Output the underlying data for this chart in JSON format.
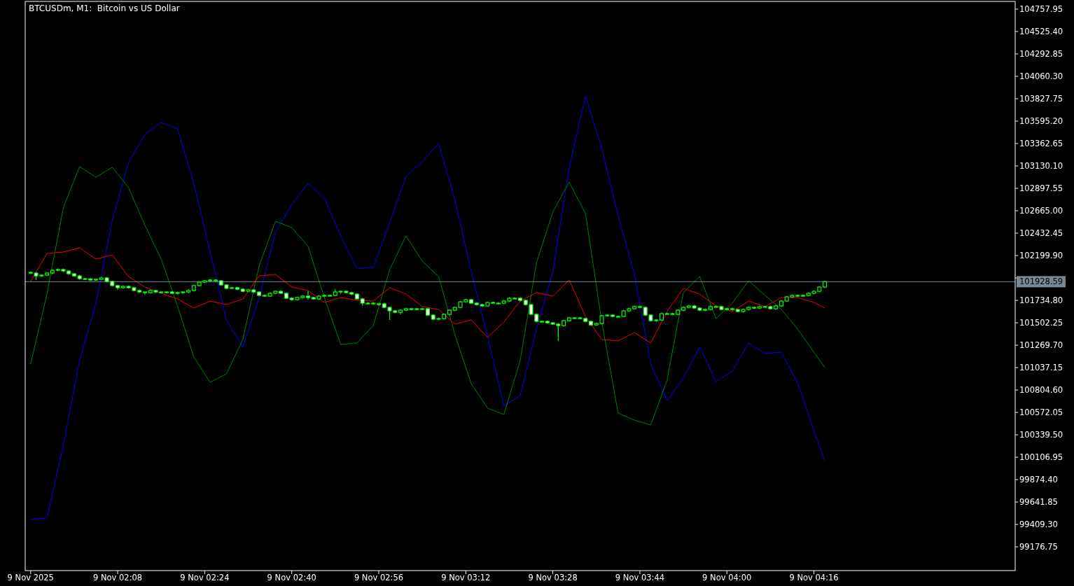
{
  "chart_data": {
    "type": "candlestick",
    "title": "BTCUSDm, M1:  Bitcoin vs US Dollar",
    "color": "#00ff00",
    "x": [
      "2025-11-09T01:52",
      "2025-11-09T01:53",
      "2025-11-09T01:54",
      "2025-11-09T01:55",
      "2025-11-09T01:56",
      "2025-11-09T01:57",
      "2025-11-09T01:58",
      "2025-11-09T01:59",
      "2025-11-09T02:00",
      "2025-11-09T02:01",
      "2025-11-09T02:02",
      "2025-11-09T02:03",
      "2025-11-09T02:04",
      "2025-11-09T02:05",
      "2025-11-09T02:06",
      "2025-11-09T02:07",
      "2025-11-09T02:08",
      "2025-11-09T02:09",
      "2025-11-09T02:10",
      "2025-11-09T02:11",
      "2025-11-09T02:12",
      "2025-11-09T02:13",
      "2025-11-09T02:14",
      "2025-11-09T02:15",
      "2025-11-09T02:16",
      "2025-11-09T02:17",
      "2025-11-09T02:18",
      "2025-11-09T02:19",
      "2025-11-09T02:20",
      "2025-11-09T02:21",
      "2025-11-09T02:22",
      "2025-11-09T02:23",
      "2025-11-09T02:24",
      "2025-11-09T02:25",
      "2025-11-09T02:26",
      "2025-11-09T02:27",
      "2025-11-09T02:28",
      "2025-11-09T02:29",
      "2025-11-09T02:30",
      "2025-11-09T02:31",
      "2025-11-09T02:32",
      "2025-11-09T02:33",
      "2025-11-09T02:34",
      "2025-11-09T02:35",
      "2025-11-09T02:36",
      "2025-11-09T02:37",
      "2025-11-09T02:38",
      "2025-11-09T02:39",
      "2025-11-09T02:40",
      "2025-11-09T02:41",
      "2025-11-09T02:42",
      "2025-11-09T02:43",
      "2025-11-09T02:44",
      "2025-11-09T02:45",
      "2025-11-09T02:46",
      "2025-11-09T02:47",
      "2025-11-09T02:48",
      "2025-11-09T02:49",
      "2025-11-09T02:50",
      "2025-11-09T02:51",
      "2025-11-09T02:52",
      "2025-11-09T02:53",
      "2025-11-09T02:54",
      "2025-11-09T02:55",
      "2025-11-09T02:56",
      "2025-11-09T02:57",
      "2025-11-09T02:58",
      "2025-11-09T02:59",
      "2025-11-09T03:00",
      "2025-11-09T03:01",
      "2025-11-09T03:02",
      "2025-11-09T03:03",
      "2025-11-09T03:04",
      "2025-11-09T03:05",
      "2025-11-09T03:06",
      "2025-11-09T03:07",
      "2025-11-09T03:08",
      "2025-11-09T03:09",
      "2025-11-09T03:10",
      "2025-11-09T03:11",
      "2025-11-09T03:12",
      "2025-11-09T03:13",
      "2025-11-09T03:14",
      "2025-11-09T03:15",
      "2025-11-09T03:16",
      "2025-11-09T03:17",
      "2025-11-09T03:18",
      "2025-11-09T03:19",
      "2025-11-09T03:20",
      "2025-11-09T03:21",
      "2025-11-09T03:22",
      "2025-11-09T03:23",
      "2025-11-09T03:24",
      "2025-11-09T03:25",
      "2025-11-09T03:26",
      "2025-11-09T03:27",
      "2025-11-09T03:28",
      "2025-11-09T03:29",
      "2025-11-09T03:30",
      "2025-11-09T03:31",
      "2025-11-09T03:32",
      "2025-11-09T03:33",
      "2025-11-09T03:34",
      "2025-11-09T03:35",
      "2025-11-09T03:36",
      "2025-11-09T03:37",
      "2025-11-09T03:38",
      "2025-11-09T03:39",
      "2025-11-09T03:40",
      "2025-11-09T03:41",
      "2025-11-09T03:42",
      "2025-11-09T03:43",
      "2025-11-09T03:44",
      "2025-11-09T03:45",
      "2025-11-09T03:46",
      "2025-11-09T03:47",
      "2025-11-09T03:48",
      "2025-11-09T03:49",
      "2025-11-09T03:50",
      "2025-11-09T03:51",
      "2025-11-09T03:52",
      "2025-11-09T03:53",
      "2025-11-09T03:54",
      "2025-11-09T03:55",
      "2025-11-09T03:56",
      "2025-11-09T03:57",
      "2025-11-09T03:58",
      "2025-11-09T03:59",
      "2025-11-09T04:00",
      "2025-11-09T04:01",
      "2025-11-09T04:02",
      "2025-11-09T04:03",
      "2025-11-09T04:04",
      "2025-11-09T04:05",
      "2025-11-09T04:06",
      "2025-11-09T04:07",
      "2025-11-09T04:08",
      "2025-11-09T04:09",
      "2025-11-09T04:10",
      "2025-11-09T04:11",
      "2025-11-09T04:12",
      "2025-11-09T04:13",
      "2025-11-09T04:14",
      "2025-11-09T04:15",
      "2025-11-09T04:16",
      "2025-11-09T04:17",
      "2025-11-09T04:18"
    ],
    "ohlc": [
      [
        102025,
        102035,
        102008,
        102018
      ],
      [
        102018,
        102028,
        101946,
        101989
      ],
      [
        101989,
        102007,
        101979,
        101997
      ],
      [
        101997,
        102028,
        101987,
        102018
      ],
      [
        102018,
        102057,
        102008,
        102047
      ],
      [
        102047,
        102065,
        102037,
        102055
      ],
      [
        102055,
        102065,
        102030,
        102040
      ],
      [
        102040,
        102050,
        102001,
        102011
      ],
      [
        102011,
        102021,
        101979,
        101989
      ],
      [
        101989,
        101999,
        101950,
        101960
      ],
      [
        101960,
        101970,
        101948,
        101958
      ],
      [
        101958,
        101968,
        101936,
        101946
      ],
      [
        101946,
        101963,
        101936,
        101953
      ],
      [
        101953,
        101978,
        101943,
        101968
      ],
      [
        101968,
        101978,
        101921,
        101931
      ],
      [
        101931,
        101941,
        101878,
        101888
      ],
      [
        101888,
        101898,
        101846,
        101866
      ],
      [
        101866,
        101890,
        101856,
        101880
      ],
      [
        101880,
        101890,
        101856,
        101866
      ],
      [
        101866,
        101876,
        101827,
        101837
      ],
      [
        101837,
        101847,
        101812,
        101822
      ],
      [
        101822,
        101832,
        101795,
        101815
      ],
      [
        101815,
        101847,
        101805,
        101837
      ],
      [
        101837,
        101847,
        101812,
        101822
      ],
      [
        101822,
        101832,
        101805,
        101815
      ],
      [
        101815,
        101832,
        101805,
        101822
      ],
      [
        101822,
        101832,
        101798,
        101808
      ],
      [
        101808,
        101825,
        101798,
        101815
      ],
      [
        101815,
        101832,
        101805,
        101822
      ],
      [
        101822,
        101847,
        101812,
        101837
      ],
      [
        101837,
        101898,
        101827,
        101888
      ],
      [
        101888,
        101934,
        101878,
        101924
      ],
      [
        101924,
        101948,
        101914,
        101938
      ],
      [
        101938,
        101956,
        101928,
        101946
      ],
      [
        101946,
        101956,
        101928,
        101938
      ],
      [
        101938,
        101948,
        101885,
        101895
      ],
      [
        101895,
        101905,
        101849,
        101859
      ],
      [
        101859,
        101876,
        101849,
        101866
      ],
      [
        101866,
        101876,
        101841,
        101851
      ],
      [
        101851,
        101861,
        101819,
        101829
      ],
      [
        101829,
        101854,
        101819,
        101844
      ],
      [
        101844,
        101854,
        101812,
        101822
      ],
      [
        101822,
        101832,
        101776,
        101786
      ],
      [
        101786,
        101796,
        101769,
        101779
      ],
      [
        101779,
        101818,
        101769,
        101808
      ],
      [
        101808,
        101839,
        101798,
        101829
      ],
      [
        101829,
        101839,
        101798,
        101808
      ],
      [
        101808,
        101818,
        101747,
        101757
      ],
      [
        101757,
        101767,
        101732,
        101742
      ],
      [
        101742,
        101774,
        101732,
        101764
      ],
      [
        101764,
        101789,
        101754,
        101779
      ],
      [
        101779,
        101830,
        101740,
        101764
      ],
      [
        101764,
        101774,
        101740,
        101750
      ],
      [
        101750,
        101789,
        101740,
        101779
      ],
      [
        101779,
        101796,
        101769,
        101786
      ],
      [
        101786,
        101796,
        101776,
        101786
      ],
      [
        101786,
        101850,
        101776,
        101822
      ],
      [
        101822,
        101839,
        101805,
        101829
      ],
      [
        101829,
        101839,
        101805,
        101815
      ],
      [
        101815,
        101825,
        101790,
        101800
      ],
      [
        101800,
        101810,
        101740,
        101750
      ],
      [
        101750,
        101760,
        101680,
        101706
      ],
      [
        101706,
        101716,
        101696,
        101706
      ],
      [
        101706,
        101716,
        101689,
        101699
      ],
      [
        101699,
        101709,
        101680,
        101699
      ],
      [
        101699,
        101709,
        101652,
        101662
      ],
      [
        101662,
        101672,
        101531,
        101626
      ],
      [
        101626,
        101636,
        101601,
        101611
      ],
      [
        101611,
        101643,
        101590,
        101633
      ],
      [
        101633,
        101658,
        101623,
        101648
      ],
      [
        101648,
        101658,
        101630,
        101640
      ],
      [
        101640,
        101658,
        101630,
        101648
      ],
      [
        101648,
        101658,
        101638,
        101648
      ],
      [
        101648,
        101658,
        101572,
        101582
      ],
      [
        101582,
        101592,
        101529,
        101539
      ],
      [
        101539,
        101556,
        101529,
        101546
      ],
      [
        101546,
        101600,
        101536,
        101590
      ],
      [
        101590,
        101643,
        101580,
        101633
      ],
      [
        101633,
        101672,
        101623,
        101662
      ],
      [
        101662,
        101730,
        101652,
        101720
      ],
      [
        101720,
        101752,
        101710,
        101742
      ],
      [
        101742,
        101752,
        101696,
        101706
      ],
      [
        101706,
        101716,
        101681,
        101691
      ],
      [
        101691,
        101701,
        101667,
        101677
      ],
      [
        101677,
        101723,
        101667,
        101713
      ],
      [
        101713,
        101723,
        101696,
        101706
      ],
      [
        101706,
        101716,
        101696,
        101706
      ],
      [
        101706,
        101738,
        101696,
        101728
      ],
      [
        101728,
        101767,
        101718,
        101757
      ],
      [
        101757,
        101767,
        101747,
        101757
      ],
      [
        101757,
        101767,
        101725,
        101735
      ],
      [
        101735,
        101745,
        101681,
        101691
      ],
      [
        101691,
        101701,
        101580,
        101590
      ],
      [
        101590,
        101600,
        101507,
        101517
      ],
      [
        101517,
        101527,
        101507,
        101517
      ],
      [
        101517,
        101527,
        101492,
        101502
      ],
      [
        101502,
        101512,
        101478,
        101488
      ],
      [
        101488,
        101498,
        101313,
        101473
      ],
      [
        101473,
        101534,
        101463,
        101524
      ],
      [
        101524,
        101563,
        101514,
        101553
      ],
      [
        101553,
        101563,
        101543,
        101553
      ],
      [
        101553,
        101563,
        101536,
        101546
      ],
      [
        101546,
        101556,
        101507,
        101517
      ],
      [
        101517,
        101527,
        101470,
        101480
      ],
      [
        101480,
        101505,
        101470,
        101495
      ],
      [
        101495,
        101585,
        101485,
        101575
      ],
      [
        101575,
        101592,
        101565,
        101582
      ],
      [
        101582,
        101592,
        101558,
        101568
      ],
      [
        101568,
        101578,
        101558,
        101568
      ],
      [
        101568,
        101636,
        101558,
        101626
      ],
      [
        101626,
        101658,
        101616,
        101648
      ],
      [
        101648,
        101680,
        101638,
        101670
      ],
      [
        101670,
        101680,
        101652,
        101662
      ],
      [
        101662,
        101672,
        101572,
        101582
      ],
      [
        101582,
        101592,
        101514,
        101524
      ],
      [
        101524,
        101541,
        101514,
        101531
      ],
      [
        101531,
        101607,
        101521,
        101597
      ],
      [
        101597,
        101607,
        101587,
        101597
      ],
      [
        101597,
        101607,
        101580,
        101590
      ],
      [
        101590,
        101643,
        101580,
        101633
      ],
      [
        101633,
        101672,
        101623,
        101662
      ],
      [
        101662,
        101687,
        101652,
        101677
      ],
      [
        101677,
        101687,
        101645,
        101655
      ],
      [
        101655,
        101665,
        101623,
        101633
      ],
      [
        101633,
        101650,
        101623,
        101640
      ],
      [
        101640,
        101680,
        101630,
        101670
      ],
      [
        101670,
        101680,
        101660,
        101670
      ],
      [
        101670,
        101680,
        101630,
        101640
      ],
      [
        101640,
        101658,
        101630,
        101648
      ],
      [
        101648,
        101658,
        101630,
        101640
      ],
      [
        101640,
        101650,
        101609,
        101619
      ],
      [
        101619,
        101650,
        101609,
        101640
      ],
      [
        101640,
        101672,
        101630,
        101662
      ],
      [
        101662,
        101672,
        101645,
        101655
      ],
      [
        101655,
        101680,
        101645,
        101670
      ],
      [
        101670,
        101680,
        101660,
        101670
      ],
      [
        101670,
        101680,
        101638,
        101648
      ],
      [
        101648,
        101687,
        101638,
        101677
      ],
      [
        101677,
        101738,
        101667,
        101728
      ],
      [
        101728,
        101781,
        101718,
        101771
      ],
      [
        101771,
        101796,
        101761,
        101786
      ],
      [
        101786,
        101796,
        101769,
        101779
      ],
      [
        101779,
        101796,
        101769,
        101786
      ],
      [
        101786,
        101818,
        101776,
        101808
      ],
      [
        101808,
        101839,
        101798,
        101829
      ],
      [
        101829,
        101883,
        101819,
        101873
      ],
      [
        101873,
        101939,
        101863,
        101929
      ]
    ],
    "series": [
      {
        "type": "line",
        "color": "#0000ff",
        "x": [
          "2025-11-09T01:52",
          "2025-11-09T01:55",
          "2025-11-09T01:58",
          "2025-11-09T02:01",
          "2025-11-09T02:04",
          "2025-11-09T02:07",
          "2025-11-09T02:10",
          "2025-11-09T02:13",
          "2025-11-09T02:16",
          "2025-11-09T02:19",
          "2025-11-09T02:22",
          "2025-11-09T02:25",
          "2025-11-09T02:28",
          "2025-11-09T02:31",
          "2025-11-09T02:34",
          "2025-11-09T02:37",
          "2025-11-09T02:40",
          "2025-11-09T02:43",
          "2025-11-09T02:46",
          "2025-11-09T02:49",
          "2025-11-09T02:52",
          "2025-11-09T02:55",
          "2025-11-09T02:58",
          "2025-11-09T03:01",
          "2025-11-09T03:04",
          "2025-11-09T03:07",
          "2025-11-09T03:10",
          "2025-11-09T03:13",
          "2025-11-09T03:16",
          "2025-11-09T03:19",
          "2025-11-09T03:22",
          "2025-11-09T03:25",
          "2025-11-09T03:28",
          "2025-11-09T03:31",
          "2025-11-09T03:34",
          "2025-11-09T03:37",
          "2025-11-09T03:40",
          "2025-11-09T03:43",
          "2025-11-09T03:46",
          "2025-11-09T03:49",
          "2025-11-09T03:52",
          "2025-11-09T03:55",
          "2025-11-09T03:58",
          "2025-11-09T04:01",
          "2025-11-09T04:04",
          "2025-11-09T04:07",
          "2025-11-09T04:10",
          "2025-11-09T04:13",
          "2025-11-09T04:16",
          "2025-11-09T04:18"
        ],
        "values": [
          99460,
          99475,
          100231,
          101110,
          101706,
          102563,
          103167,
          103457,
          103581,
          103515,
          102949,
          102236,
          101532,
          101248,
          101764,
          102440,
          102731,
          102949,
          102796,
          102404,
          102062,
          102077,
          102542,
          103021,
          103174,
          103363,
          102781,
          102033,
          101364,
          100638,
          100747,
          101437,
          102033,
          103108,
          103857,
          103312,
          102614,
          102004,
          101074,
          100696,
          100928,
          101255,
          100892,
          101001,
          101292,
          101183,
          101197,
          100878,
          100383,
          100071
        ]
      },
      {
        "type": "line",
        "color": "#008000",
        "x": [
          "2025-11-09T01:52",
          "2025-11-09T01:55",
          "2025-11-09T01:58",
          "2025-11-09T02:01",
          "2025-11-09T02:04",
          "2025-11-09T02:07",
          "2025-11-09T02:10",
          "2025-11-09T02:13",
          "2025-11-09T02:16",
          "2025-11-09T02:19",
          "2025-11-09T02:22",
          "2025-11-09T02:25",
          "2025-11-09T02:28",
          "2025-11-09T02:31",
          "2025-11-09T02:34",
          "2025-11-09T02:37",
          "2025-11-09T02:40",
          "2025-11-09T02:43",
          "2025-11-09T02:46",
          "2025-11-09T02:49",
          "2025-11-09T02:52",
          "2025-11-09T02:55",
          "2025-11-09T02:58",
          "2025-11-09T03:01",
          "2025-11-09T03:04",
          "2025-11-09T03:07",
          "2025-11-09T03:10",
          "2025-11-09T03:13",
          "2025-11-09T03:16",
          "2025-11-09T03:19",
          "2025-11-09T03:22",
          "2025-11-09T03:25",
          "2025-11-09T03:28",
          "2025-11-09T03:31",
          "2025-11-09T03:34",
          "2025-11-09T03:37",
          "2025-11-09T03:40",
          "2025-11-09T03:43",
          "2025-11-09T03:46",
          "2025-11-09T03:49",
          "2025-11-09T03:52",
          "2025-11-09T03:55",
          "2025-11-09T03:58",
          "2025-11-09T04:01",
          "2025-11-09T04:04",
          "2025-11-09T04:07",
          "2025-11-09T04:10",
          "2025-11-09T04:13",
          "2025-11-09T04:16",
          "2025-11-09T04:18"
        ],
        "values": [
          101074,
          101800,
          102694,
          103123,
          103014,
          103116,
          102905,
          102514,
          102164,
          101677,
          101146,
          100885,
          100972,
          101328,
          102091,
          102556,
          102491,
          102295,
          101764,
          101277,
          101292,
          101473,
          102055,
          102404,
          102142,
          101982,
          101379,
          100870,
          100616,
          100550,
          101110,
          102127,
          102651,
          102963,
          102636,
          101510,
          100565,
          100492,
          100441,
          100907,
          101815,
          101982,
          101546,
          101706,
          101938,
          101786,
          101641,
          101437,
          101197,
          101037
        ]
      },
      {
        "type": "line",
        "color": "#ff0000",
        "x": [
          "2025-11-09T01:52",
          "2025-11-09T01:55",
          "2025-11-09T01:58",
          "2025-11-09T02:01",
          "2025-11-09T02:04",
          "2025-11-09T02:07",
          "2025-11-09T02:10",
          "2025-11-09T02:13",
          "2025-11-09T02:16",
          "2025-11-09T02:19",
          "2025-11-09T02:22",
          "2025-11-09T02:25",
          "2025-11-09T02:28",
          "2025-11-09T02:31",
          "2025-11-09T02:34",
          "2025-11-09T02:37",
          "2025-11-09T02:40",
          "2025-11-09T02:43",
          "2025-11-09T02:46",
          "2025-11-09T02:49",
          "2025-11-09T02:52",
          "2025-11-09T02:55",
          "2025-11-09T02:58",
          "2025-11-09T03:01",
          "2025-11-09T03:04",
          "2025-11-09T03:07",
          "2025-11-09T03:10",
          "2025-11-09T03:13",
          "2025-11-09T03:16",
          "2025-11-09T03:19",
          "2025-11-09T03:22",
          "2025-11-09T03:25",
          "2025-11-09T03:28",
          "2025-11-09T03:31",
          "2025-11-09T03:34",
          "2025-11-09T03:37",
          "2025-11-09T03:40",
          "2025-11-09T03:43",
          "2025-11-09T03:46",
          "2025-11-09T03:49",
          "2025-11-09T03:52",
          "2025-11-09T03:55",
          "2025-11-09T03:58",
          "2025-11-09T04:01",
          "2025-11-09T04:04",
          "2025-11-09T04:07",
          "2025-11-09T04:10",
          "2025-11-09T04:13",
          "2025-11-09T04:16",
          "2025-11-09T04:18"
        ],
        "values": [
          101931,
          102222,
          102236,
          102280,
          102164,
          102207,
          101982,
          101873,
          101808,
          101750,
          101655,
          101728,
          101691,
          101750,
          101989,
          102004,
          101873,
          101837,
          101713,
          101764,
          101735,
          101728,
          101866,
          101800,
          101670,
          101641,
          101488,
          101532,
          101350,
          101510,
          101728,
          101815,
          101779,
          101946,
          101568,
          101328,
          101314,
          101401,
          101292,
          101619,
          101859,
          101800,
          101677,
          101619,
          101728,
          101670,
          101764,
          101764,
          101713,
          101655
        ]
      }
    ],
    "ref_lines": [
      {
        "axis": "y",
        "value": 101928.59,
        "label": "101928.59",
        "color": "#778899"
      }
    ],
    "xlim": [
      "2025-11-09T01:51",
      "2025-11-09T04:53"
    ],
    "xticks": [
      {
        "value": "2025-11-09T01:52",
        "label": "9 Nov 2025"
      },
      {
        "value": "2025-11-09T02:08",
        "label": "9 Nov 02:08"
      },
      {
        "value": "2025-11-09T02:24",
        "label": "9 Nov 02:24"
      },
      {
        "value": "2025-11-09T02:40",
        "label": "9 Nov 02:40"
      },
      {
        "value": "2025-11-09T02:56",
        "label": "9 Nov 02:56"
      },
      {
        "value": "2025-11-09T03:12",
        "label": "9 Nov 03:12"
      },
      {
        "value": "2025-11-09T03:28",
        "label": "9 Nov 03:28"
      },
      {
        "value": "2025-11-09T03:44",
        "label": "9 Nov 03:44"
      },
      {
        "value": "2025-11-09T04:00",
        "label": "9 Nov 04:00"
      },
      {
        "value": "2025-11-09T04:16",
        "label": "9 Nov 04:16"
      }
    ],
    "ylim": [
      98930,
      104838
    ],
    "yticks": [
      {
        "value": 104757.95,
        "label": "104757.95"
      },
      {
        "value": 104525.4,
        "label": "104525.40"
      },
      {
        "value": 104292.85,
        "label": "104292.85"
      },
      {
        "value": 104060.3,
        "label": "104060.30"
      },
      {
        "value": 103827.75,
        "label": "103827.75"
      },
      {
        "value": 103595.2,
        "label": "103595.20"
      },
      {
        "value": 103362.65,
        "label": "103362.65"
      },
      {
        "value": 103130.1,
        "label": "103130.10"
      },
      {
        "value": 102897.55,
        "label": "102897.55"
      },
      {
        "value": 102665,
        "label": "102665.00"
      },
      {
        "value": 102432.45,
        "label": "102432.45"
      },
      {
        "value": 102199.9,
        "label": "102199.90"
      },
      {
        "value": 101967.35,
        "label": null
      },
      {
        "value": 101734.8,
        "label": "101734.80"
      },
      {
        "value": 101502.25,
        "label": "101502.25"
      },
      {
        "value": 101269.7,
        "label": "101269.70"
      },
      {
        "value": 101037.15,
        "label": "101037.15"
      },
      {
        "value": 100804.6,
        "label": "100804.60"
      },
      {
        "value": 100572.05,
        "label": "100572.05"
      },
      {
        "value": 100339.5,
        "label": "100339.50"
      },
      {
        "value": 100106.95,
        "label": "100106.95"
      },
      {
        "value": 99874.4,
        "label": "99874.40"
      },
      {
        "value": 99641.85,
        "label": "99641.85"
      },
      {
        "value": 99409.3,
        "label": "99409.30"
      },
      {
        "value": 99176.75,
        "label": "99176.75"
      }
    ],
    "grid": false
  }
}
